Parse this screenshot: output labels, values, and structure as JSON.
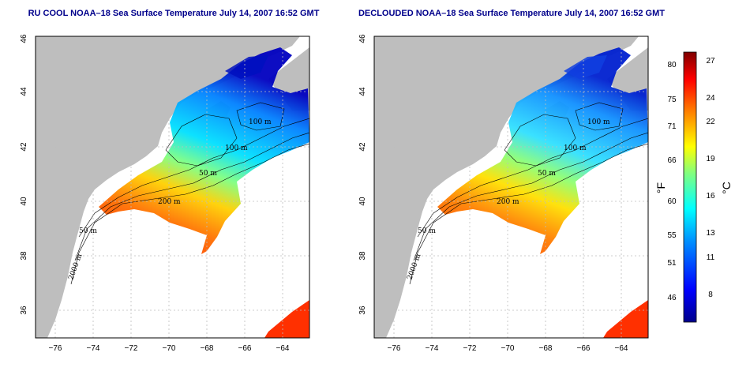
{
  "colors": {
    "land": "#bebebe",
    "ocean_nodata": "#ffffff",
    "title": "#00008b",
    "grid": "#bdbdbd",
    "colorbar": [
      "#00008b",
      "#0000ff",
      "#0080ff",
      "#00ffff",
      "#80ff80",
      "#ffff00",
      "#ff8000",
      "#ff0000",
      "#800000"
    ]
  },
  "left_panel": {
    "title": "RU COOL NOAA–18 Sea Surface Temperature July 14, 2007 16:52 GMT",
    "x_ticks": [
      "−76",
      "−74",
      "−72",
      "−70",
      "−68",
      "−66",
      "−64"
    ],
    "y_ticks": [
      "36",
      "38",
      "40",
      "42",
      "44",
      "46"
    ],
    "isobath_labels": [
      "100 m",
      "100 m",
      "50 m",
      "200 m",
      "50 m",
      "2000 m"
    ]
  },
  "right_panel": {
    "title": "DECLOUDED NOAA–18 Sea Surface Temperature July 14, 2007 16:52 GMT",
    "x_ticks": [
      "−76",
      "−74",
      "−72",
      "−70",
      "−68",
      "−66",
      "−64"
    ],
    "y_ticks": [
      "36",
      "38",
      "40",
      "42",
      "44",
      "46"
    ],
    "isobath_labels": [
      "100 m",
      "100 m",
      "50 m",
      "200 m",
      "50 m",
      "2000 m"
    ]
  },
  "colorbar": {
    "fahrenheit_ticks": [
      "80",
      "75",
      "71",
      "66",
      "60",
      "55",
      "51",
      "46"
    ],
    "celsius_ticks": [
      "27",
      "24",
      "22",
      "19",
      "16",
      "13",
      "11",
      "8"
    ],
    "fahrenheit_unit": "°F",
    "celsius_unit": "°C",
    "range_c": [
      5,
      28
    ]
  }
}
